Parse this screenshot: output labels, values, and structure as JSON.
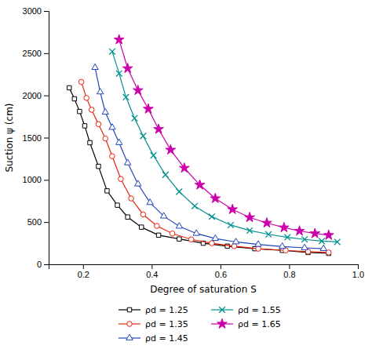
{
  "chart_data": {
    "type": "line",
    "x_label": "Degree of saturation S",
    "y_label": "Suction ψ (cm)",
    "xlim": [
      0.1,
      1.0
    ],
    "ylim": [
      0,
      3000
    ],
    "xticks": [
      0.2,
      0.4,
      0.6,
      0.8,
      {
        "value": 1.0,
        "label": "1.0"
      }
    ],
    "yticks": [
      0,
      500,
      1000,
      1500,
      2000,
      2500,
      3000
    ],
    "legend": "bottom",
    "series": [
      {
        "name": "ρd = 1.25",
        "color": "#000000",
        "marker": "square",
        "x": [
          0.16,
          0.175,
          0.19,
          0.205,
          0.22,
          0.245,
          0.27,
          0.3,
          0.33,
          0.37,
          0.42,
          0.48,
          0.55,
          0.62,
          0.7,
          0.78,
          0.855,
          0.915
        ],
        "values": [
          2090,
          1960,
          1810,
          1640,
          1440,
          1160,
          870,
          700,
          560,
          440,
          345,
          300,
          250,
          215,
          185,
          165,
          140,
          130
        ]
      },
      {
        "name": "ρd = 1.35",
        "color": "#e8230a",
        "marker": "circle",
        "x": [
          0.195,
          0.21,
          0.225,
          0.245,
          0.265,
          0.285,
          0.31,
          0.34,
          0.375,
          0.415,
          0.46,
          0.515,
          0.575,
          0.64,
          0.71,
          0.79,
          0.855,
          0.915
        ],
        "values": [
          2160,
          1970,
          1830,
          1660,
          1490,
          1280,
          1010,
          780,
          590,
          455,
          365,
          295,
          250,
          215,
          185,
          165,
          150,
          140
        ]
      },
      {
        "name": "ρd = 1.45",
        "color": "#2244bb",
        "marker": "triangle",
        "x": [
          0.235,
          0.25,
          0.265,
          0.285,
          0.305,
          0.33,
          0.36,
          0.395,
          0.435,
          0.48,
          0.53,
          0.585,
          0.645,
          0.71,
          0.78,
          0.845,
          0.9
        ],
        "values": [
          2330,
          2040,
          1800,
          1620,
          1440,
          1200,
          950,
          730,
          570,
          450,
          365,
          305,
          265,
          235,
          210,
          195,
          185
        ]
      },
      {
        "name": "ρd = 1.55",
        "color": "#009090",
        "marker": "x",
        "x": [
          0.285,
          0.305,
          0.325,
          0.35,
          0.375,
          0.405,
          0.44,
          0.48,
          0.525,
          0.575,
          0.63,
          0.685,
          0.74,
          0.795,
          0.845,
          0.895,
          0.94
        ],
        "values": [
          2520,
          2260,
          1980,
          1730,
          1520,
          1290,
          1060,
          860,
          690,
          565,
          465,
          400,
          355,
          320,
          295,
          275,
          265
        ]
      },
      {
        "name": "ρd = 1.65",
        "color": "#cc00aa",
        "marker": "star",
        "x": [
          0.305,
          0.33,
          0.36,
          0.39,
          0.42,
          0.455,
          0.495,
          0.54,
          0.585,
          0.635,
          0.685,
          0.735,
          0.785,
          0.83,
          0.875,
          0.915
        ],
        "values": [
          2660,
          2320,
          2060,
          1840,
          1600,
          1355,
          1140,
          940,
          780,
          650,
          555,
          490,
          435,
          395,
          365,
          345
        ]
      }
    ]
  }
}
